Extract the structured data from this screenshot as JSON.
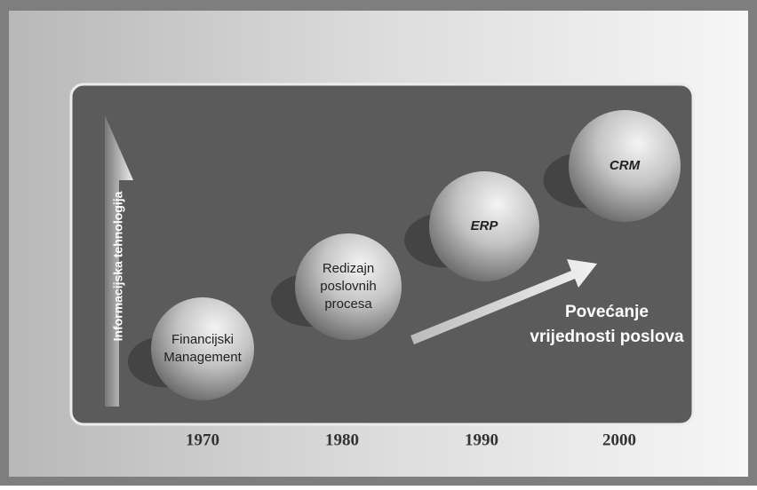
{
  "axis_label": "Informacijska tehnologija",
  "arrow_label": [
    "Povećanje",
    "vrijednosti poslova"
  ],
  "nodes": [
    {
      "lines": [
        "Financijski",
        "Management"
      ],
      "italic": false
    },
    {
      "lines": [
        "Redizajn",
        "poslovnih",
        "procesa"
      ],
      "italic": false
    },
    {
      "lines": [
        "ERP"
      ],
      "italic": true
    },
    {
      "lines": [
        "CRM"
      ],
      "italic": true
    }
  ],
  "years": [
    "1970",
    "1980",
    "1990",
    "2000"
  ]
}
